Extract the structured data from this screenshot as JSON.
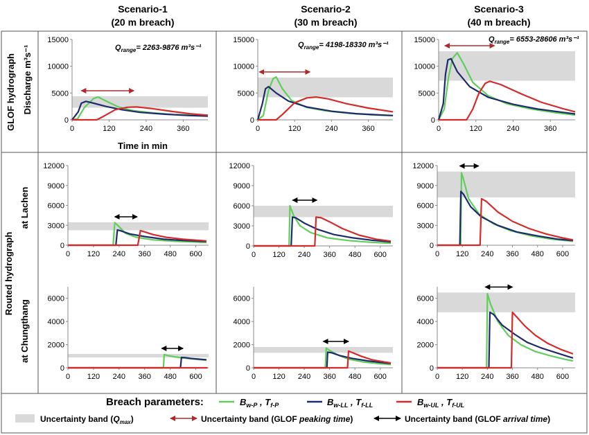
{
  "figure": {
    "scenarios": [
      {
        "title": "Scenario-1",
        "subtitle": "(20 m breach)"
      },
      {
        "title": "Scenario-2",
        "subtitle": "(30 m breach)"
      },
      {
        "title": "Scenario-3",
        "subtitle": "(40 m breach)"
      }
    ],
    "row_labels": {
      "glof": "GLOF hydrograph",
      "routed": "Routed hydrograph",
      "lachen": "at Lachen",
      "chungthang": "at Chungthang"
    },
    "ylabel_discharge": "Discharge m³s⁻¹",
    "xlabel_time": "Time in min",
    "qrange": [
      {
        "prefix": "Q",
        "sub": "range",
        "value": "= 2263-9876 m³s⁻¹"
      },
      {
        "prefix": "Q",
        "sub": "range",
        "value": "= 4198-18330 m³s⁻¹"
      },
      {
        "prefix": "Q",
        "sub": "range",
        "value": "= 6553-28606 m³s⁻¹"
      }
    ],
    "legend": {
      "breach_label": "Breach parameters:",
      "items": [
        {
          "b": "B",
          "bsub": "w-P",
          "t": "T",
          "tsub": "f-P",
          "color": "#5fce5a"
        },
        {
          "b": "B",
          "bsub": "w-LL",
          "t": "T",
          "tsub": "f-LL",
          "color": "#1d2a6b"
        },
        {
          "b": "B",
          "bsub": "w-UL",
          "t": "T",
          "tsub": "f-UL",
          "color": "#d62a2a"
        }
      ],
      "band_label": "Uncertainty band (",
      "band_q": "Q",
      "band_qsub": "max",
      "band_close": ")",
      "peak_label_a": "Uncertainty band (GLOF ",
      "peak_label_em": "peaking time",
      "peak_label_b": ")",
      "arrival_label_a": "Uncertainty band (GLOF ",
      "arrival_label_em": "arrival time",
      "arrival_label_b": ")"
    },
    "colors": {
      "green": "#5fce5a",
      "navy": "#1d2a6b",
      "red": "#d62a2a",
      "band": "#d9d9d9",
      "peak_arrow": "#b0282a",
      "arrival_arrow": "#000000"
    }
  },
  "chart_data": [
    {
      "type": "line",
      "row": "GLOF hydrograph",
      "col": "Scenario-1",
      "x_unit": "min",
      "ylim": [
        0,
        15000
      ],
      "xlim": [
        0,
        440
      ],
      "yticks": [
        0,
        5000,
        10000,
        15000
      ],
      "xticks": [
        0,
        120,
        240,
        360
      ],
      "uncertainty_band_qmax": [
        2263,
        4400
      ],
      "peaking_time_band": [
        30,
        200
      ],
      "series": [
        {
          "key": "P",
          "x": [
            0,
            18,
            40,
            70,
            85,
            110,
            150,
            200,
            260,
            330,
            400,
            440
          ],
          "y": [
            0,
            200,
            2300,
            4000,
            4250,
            3500,
            2400,
            1700,
            1300,
            1000,
            850,
            750
          ]
        },
        {
          "key": "LL",
          "x": [
            0,
            20,
            30,
            45,
            70,
            110,
            160,
            220,
            300,
            380,
            440
          ],
          "y": [
            0,
            1500,
            3100,
            3450,
            3100,
            2500,
            1900,
            1400,
            1050,
            800,
            700
          ]
        },
        {
          "key": "UL",
          "x": [
            0,
            80,
            100,
            140,
            180,
            210,
            260,
            320,
            380,
            440
          ],
          "y": [
            0,
            0,
            600,
            1900,
            2350,
            2400,
            2100,
            1600,
            1150,
            850
          ]
        }
      ]
    },
    {
      "type": "line",
      "row": "GLOF hydrograph",
      "col": "Scenario-2",
      "x_unit": "min",
      "ylim": [
        0,
        15000
      ],
      "xlim": [
        0,
        440
      ],
      "yticks": [
        0,
        5000,
        10000,
        15000
      ],
      "xticks": [
        0,
        120,
        240,
        360
      ],
      "uncertainty_band_qmax": [
        4198,
        7900
      ],
      "peaking_time_band": [
        5,
        170
      ],
      "series": [
        {
          "key": "P",
          "x": [
            0,
            18,
            35,
            50,
            60,
            80,
            110,
            160,
            220,
            300,
            380,
            440
          ],
          "y": [
            0,
            800,
            5500,
            7700,
            8000,
            5800,
            3600,
            2300,
            1700,
            1200,
            900,
            800
          ]
        },
        {
          "key": "LL",
          "x": [
            0,
            15,
            25,
            35,
            60,
            100,
            160,
            240,
            320,
            400,
            440
          ],
          "y": [
            0,
            3000,
            5800,
            6200,
            5000,
            3500,
            2400,
            1600,
            1150,
            900,
            800
          ]
        },
        {
          "key": "UL",
          "x": [
            0,
            60,
            80,
            120,
            160,
            190,
            230,
            290,
            360,
            440
          ],
          "y": [
            0,
            0,
            1000,
            3200,
            4100,
            4250,
            3900,
            3000,
            2200,
            1500
          ]
        }
      ]
    },
    {
      "type": "line",
      "row": "GLOF hydrograph",
      "col": "Scenario-3",
      "x_unit": "min",
      "ylim": [
        0,
        15000
      ],
      "xlim": [
        0,
        440
      ],
      "yticks": [
        0,
        5000,
        10000,
        15000
      ],
      "xticks": [
        0,
        120,
        240,
        360
      ],
      "uncertainty_band_qmax": [
        7300,
        12800
      ],
      "peaking_time_band": [
        20,
        180
      ],
      "series": [
        {
          "key": "P",
          "x": [
            0,
            18,
            32,
            45,
            60,
            80,
            110,
            160,
            220,
            300,
            380,
            440
          ],
          "y": [
            0,
            2000,
            8000,
            11500,
            12500,
            10500,
            7000,
            4500,
            3000,
            2000,
            1300,
            900
          ]
        },
        {
          "key": "LL",
          "x": [
            0,
            15,
            22,
            30,
            40,
            60,
            100,
            160,
            240,
            320,
            400,
            440
          ],
          "y": [
            0,
            3000,
            8500,
            11200,
            11400,
            9000,
            6200,
            4200,
            2900,
            2000,
            1400,
            1100
          ]
        },
        {
          "key": "UL",
          "x": [
            0,
            90,
            110,
            130,
            150,
            165,
            200,
            260,
            330,
            400,
            440
          ],
          "y": [
            0,
            0,
            2000,
            5000,
            6800,
            7200,
            6600,
            5000,
            3300,
            2100,
            1500
          ]
        }
      ]
    },
    {
      "type": "line",
      "row": "Routed hydrograph at Lachen",
      "col": "Scenario-1",
      "x_unit": "min",
      "ylim": [
        0,
        12000
      ],
      "xlim": [
        0,
        660
      ],
      "yticks": [
        0,
        3000,
        6000,
        9000,
        12000
      ],
      "xticks": [
        0,
        120,
        240,
        360,
        480,
        600
      ],
      "uncertainty_band_qmax": [
        2250,
        3450
      ],
      "arrival_time_band": [
        220,
        325
      ],
      "series": [
        {
          "key": "P",
          "x": [
            0,
            212,
            220,
            240,
            270,
            320,
            400,
            500,
            650
          ],
          "y": [
            0,
            0,
            3400,
            2800,
            1800,
            1200,
            800,
            600,
            400
          ]
        },
        {
          "key": "LL",
          "x": [
            0,
            225,
            232,
            245,
            290,
            360,
            450,
            550,
            650
          ],
          "y": [
            0,
            0,
            2300,
            2200,
            1700,
            1300,
            900,
            700,
            550
          ]
        },
        {
          "key": "UL",
          "x": [
            0,
            328,
            340,
            360,
            400,
            460,
            540,
            650
          ],
          "y": [
            0,
            0,
            2200,
            2000,
            1600,
            1200,
            900,
            650
          ]
        }
      ]
    },
    {
      "type": "line",
      "row": "Routed hydrograph at Lachen",
      "col": "Scenario-2",
      "x_unit": "min",
      "ylim": [
        0,
        12000
      ],
      "xlim": [
        0,
        660
      ],
      "yticks": [
        0,
        3000,
        6000,
        9000,
        12000
      ],
      "xticks": [
        0,
        120,
        240,
        360,
        480,
        600
      ],
      "uncertainty_band_qmax": [
        4300,
        6000
      ],
      "arrival_time_band": [
        185,
        300
      ],
      "series": [
        {
          "key": "P",
          "x": [
            0,
            168,
            172,
            190,
            220,
            270,
            350,
            450,
            550,
            650
          ],
          "y": [
            0,
            0,
            6000,
            4500,
            3000,
            2000,
            1200,
            800,
            550,
            400
          ]
        },
        {
          "key": "LL",
          "x": [
            0,
            178,
            184,
            200,
            240,
            300,
            380,
            470,
            560,
            650
          ],
          "y": [
            0,
            0,
            4300,
            4200,
            3400,
            2500,
            1700,
            1200,
            850,
            600
          ]
        },
        {
          "key": "UL",
          "x": [
            0,
            290,
            296,
            320,
            360,
            420,
            500,
            580,
            650
          ],
          "y": [
            0,
            0,
            4300,
            4200,
            3600,
            2600,
            1600,
            1000,
            700
          ]
        }
      ]
    },
    {
      "type": "line",
      "row": "Routed hydrograph at Lachen",
      "col": "Scenario-3",
      "x_unit": "min",
      "ylim": [
        0,
        12000
      ],
      "xlim": [
        0,
        660
      ],
      "yticks": [
        0,
        3000,
        6000,
        9000,
        12000
      ],
      "xticks": [
        0,
        120,
        240,
        360,
        480,
        600
      ],
      "uncertainty_band_qmax": [
        7200,
        11100
      ],
      "arrival_time_band": [
        108,
        198
      ],
      "series": [
        {
          "key": "P",
          "x": [
            0,
            112,
            116,
            125,
            150,
            200,
            270,
            350,
            450,
            550,
            650
          ],
          "y": [
            0,
            0,
            10900,
            10000,
            7000,
            4700,
            3200,
            2200,
            1400,
            900,
            600
          ]
        },
        {
          "key": "LL",
          "x": [
            0,
            108,
            113,
            125,
            160,
            210,
            290,
            380,
            480,
            580,
            650
          ],
          "y": [
            0,
            0,
            8100,
            7700,
            5800,
            4300,
            3000,
            2000,
            1400,
            900,
            700
          ]
        },
        {
          "key": "UL",
          "x": [
            0,
            205,
            212,
            235,
            290,
            360,
            440,
            520,
            600,
            650
          ],
          "y": [
            0,
            0,
            7000,
            6600,
            5000,
            3600,
            2500,
            1700,
            1100,
            800
          ]
        }
      ]
    },
    {
      "type": "line",
      "row": "Routed hydrograph at Chungthang",
      "col": "Scenario-1",
      "x_unit": "min",
      "ylim": [
        0,
        7000
      ],
      "xlim": [
        0,
        660
      ],
      "yticks": [
        0,
        2000,
        4000,
        6000
      ],
      "xticks": [
        0,
        120,
        240,
        360,
        480,
        600
      ],
      "uncertainty_band_qmax": [
        900,
        1200
      ],
      "arrival_time_band": [
        440,
        540
      ],
      "series": [
        {
          "key": "P",
          "x": [
            0,
            448,
            452,
            470,
            500,
            540,
            600,
            650
          ],
          "y": [
            0,
            0,
            1150,
            1050,
            950,
            850,
            750,
            650
          ]
        },
        {
          "key": "LL",
          "x": [
            0,
            528,
            533,
            550,
            580,
            620,
            650
          ],
          "y": [
            0,
            0,
            900,
            880,
            800,
            740,
            700
          ]
        },
        {
          "key": "UL",
          "x": [
            0,
            655
          ],
          "y": [
            0,
            0
          ]
        }
      ]
    },
    {
      "type": "line",
      "row": "Routed hydrograph at Chungthang",
      "col": "Scenario-2",
      "x_unit": "min",
      "ylim": [
        0,
        7000
      ],
      "xlim": [
        0,
        660
      ],
      "yticks": [
        0,
        2000,
        4000,
        6000
      ],
      "xticks": [
        0,
        120,
        240,
        360,
        480,
        600
      ],
      "uncertainty_band_qmax": [
        1300,
        1800
      ],
      "arrival_time_band": [
        330,
        450
      ],
      "series": [
        {
          "key": "P",
          "x": [
            0,
            340,
            344,
            360,
            400,
            450,
            520,
            600,
            650
          ],
          "y": [
            0,
            0,
            1700,
            1500,
            1100,
            750,
            500,
            350,
            280
          ]
        },
        {
          "key": "LL",
          "x": [
            0,
            347,
            351,
            370,
            410,
            470,
            540,
            610,
            650
          ],
          "y": [
            0,
            0,
            1350,
            1300,
            1050,
            800,
            600,
            450,
            380
          ]
        },
        {
          "key": "UL",
          "x": [
            0,
            445,
            450,
            470,
            510,
            560,
            620,
            650
          ],
          "y": [
            0,
            0,
            1450,
            1300,
            1000,
            700,
            500,
            420
          ]
        }
      ]
    },
    {
      "type": "line",
      "row": "Routed hydrograph at Chungthang",
      "col": "Scenario-3",
      "x_unit": "min",
      "ylim": [
        0,
        7000
      ],
      "xlim": [
        0,
        660
      ],
      "yticks": [
        0,
        2000,
        4000,
        6000
      ],
      "xticks": [
        0,
        120,
        240,
        360,
        480,
        600
      ],
      "uncertainty_band_qmax": [
        4800,
        6500
      ],
      "arrival_time_band": [
        230,
        360
      ],
      "series": [
        {
          "key": "P",
          "x": [
            0,
            236,
            240,
            255,
            290,
            340,
            400,
            470,
            550,
            620,
            650
          ],
          "y": [
            0,
            0,
            6400,
            5500,
            4000,
            2800,
            2000,
            1400,
            1000,
            700,
            600
          ]
        },
        {
          "key": "LL",
          "x": [
            0,
            247,
            252,
            270,
            310,
            370,
            430,
            500,
            570,
            630,
            650
          ],
          "y": [
            0,
            0,
            4800,
            4600,
            3700,
            2900,
            2200,
            1700,
            1300,
            950,
            850
          ]
        },
        {
          "key": "UL",
          "x": [
            0,
            355,
            360,
            380,
            420,
            470,
            530,
            590,
            650
          ],
          "y": [
            0,
            0,
            4800,
            4400,
            3600,
            2800,
            2100,
            1600,
            1200
          ]
        }
      ]
    }
  ]
}
